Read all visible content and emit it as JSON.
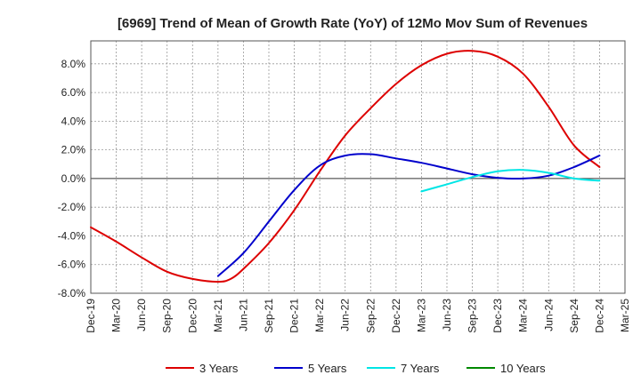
{
  "chart_data": {
    "type": "line",
    "title": "[6969]  Trend of Mean of Growth Rate (YoY) of 12Mo Mov Sum of Revenues",
    "xlabel": "",
    "ylabel": "",
    "x_ticks": [
      "Dec-19",
      "Mar-20",
      "Jun-20",
      "Sep-20",
      "Dec-20",
      "Mar-21",
      "Jun-21",
      "Sep-21",
      "Dec-21",
      "Mar-22",
      "Jun-22",
      "Sep-22",
      "Dec-22",
      "Mar-23",
      "Jun-23",
      "Sep-23",
      "Dec-23",
      "Mar-24",
      "Jun-24",
      "Sep-24",
      "Dec-24",
      "Mar-25"
    ],
    "y_ticks": [
      8.0,
      6.0,
      4.0,
      2.0,
      0.0,
      -2.0,
      -4.0,
      -6.0,
      -8.0
    ],
    "y_tick_labels": [
      "8.0%",
      "6.0%",
      "4.0%",
      "2.0%",
      "0.0%",
      "-2.0%",
      "-4.0%",
      "-6.0%",
      "-8.0%"
    ],
    "ylim": [
      -8.0,
      9.6
    ],
    "grid": true,
    "legend_position": "bottom",
    "series": [
      {
        "name": "3 Years",
        "color": "#dd0000",
        "points": [
          [
            0,
            -3.4
          ],
          [
            1,
            -4.4
          ],
          [
            2,
            -5.5
          ],
          [
            3,
            -6.5
          ],
          [
            4,
            -7.0
          ],
          [
            5,
            -7.2
          ],
          [
            5.5,
            -7.0
          ],
          [
            6,
            -6.3
          ],
          [
            7,
            -4.5
          ],
          [
            8,
            -2.2
          ],
          [
            9,
            0.5
          ],
          [
            10,
            3.0
          ],
          [
            11,
            4.9
          ],
          [
            12,
            6.6
          ],
          [
            13,
            7.9
          ],
          [
            14,
            8.7
          ],
          [
            15,
            8.9
          ],
          [
            16,
            8.5
          ],
          [
            17,
            7.3
          ],
          [
            18,
            5.0
          ],
          [
            19,
            2.3
          ],
          [
            20,
            0.8
          ]
        ]
      },
      {
        "name": "5 Years",
        "color": "#0000cc",
        "points": [
          [
            5,
            -6.8
          ],
          [
            6,
            -5.2
          ],
          [
            7,
            -3.0
          ],
          [
            8,
            -0.8
          ],
          [
            9,
            0.9
          ],
          [
            10,
            1.6
          ],
          [
            11,
            1.7
          ],
          [
            12,
            1.4
          ],
          [
            13,
            1.1
          ],
          [
            14,
            0.7
          ],
          [
            15,
            0.3
          ],
          [
            16,
            0.05
          ],
          [
            17,
            0.0
          ],
          [
            18,
            0.2
          ],
          [
            19,
            0.8
          ],
          [
            20,
            1.6
          ]
        ]
      },
      {
        "name": "7 Years",
        "color": "#00e5e5",
        "points": [
          [
            13,
            -0.9
          ],
          [
            14,
            -0.4
          ],
          [
            15,
            0.1
          ],
          [
            16,
            0.5
          ],
          [
            17,
            0.6
          ],
          [
            18,
            0.4
          ],
          [
            19,
            0.0
          ],
          [
            20,
            -0.15
          ]
        ]
      },
      {
        "name": "10 Years",
        "color": "#008800",
        "points": []
      }
    ]
  }
}
